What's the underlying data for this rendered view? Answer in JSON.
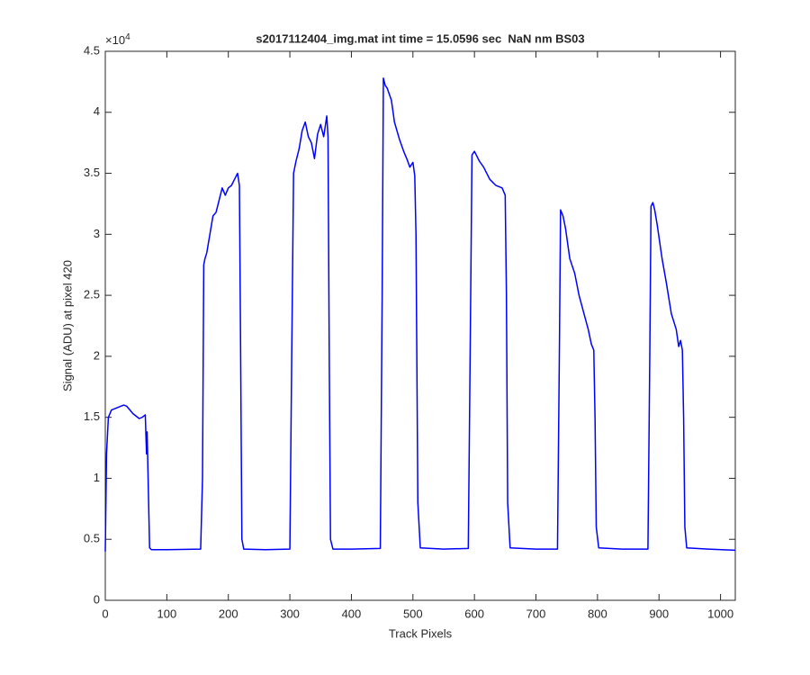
{
  "chart_data": {
    "type": "line",
    "title": "s2017112404_img.mat int time = 15.0596 sec  NaN nm BS03",
    "xlabel": "Track Pixels",
    "ylabel": "Signal (ADU) at pixel 420",
    "y_multiplier": {
      "base": "×10",
      "power": "4"
    },
    "color": "#0000ff",
    "x": [
      0,
      2,
      5,
      10,
      20,
      30,
      35,
      45,
      55,
      60,
      65,
      67,
      68,
      70,
      72,
      75,
      100,
      155,
      158,
      160,
      162,
      165,
      170,
      175,
      180,
      185,
      190,
      195,
      200,
      205,
      210,
      215,
      218,
      220,
      222,
      225,
      260,
      300,
      303,
      306,
      310,
      315,
      320,
      325,
      330,
      335,
      340,
      345,
      350,
      355,
      360,
      362,
      364,
      366,
      370,
      400,
      447,
      450,
      452,
      455,
      458,
      465,
      470,
      478,
      485,
      490,
      495,
      500,
      503,
      505,
      508,
      512,
      550,
      590,
      593,
      596,
      600,
      608,
      615,
      625,
      635,
      645,
      650,
      652,
      654,
      658,
      700,
      735,
      738,
      740,
      744,
      748,
      755,
      763,
      770,
      778,
      785,
      790,
      794,
      796,
      798,
      802,
      840,
      882,
      885,
      887,
      890,
      893,
      897,
      905,
      912,
      920,
      928,
      932,
      935,
      938,
      940,
      942,
      945,
      980,
      1024
    ],
    "values": [
      4000,
      12000,
      15000,
      15600,
      15800,
      16000,
      15900,
      15300,
      14900,
      15000,
      15200,
      12000,
      13800,
      9000,
      4300,
      4150,
      4150,
      4200,
      10000,
      27500,
      28000,
      28500,
      30000,
      31500,
      31800,
      32800,
      33800,
      33200,
      33800,
      34000,
      34500,
      35000,
      34000,
      20000,
      5000,
      4200,
      4150,
      4200,
      20000,
      35000,
      36000,
      37000,
      38500,
      39200,
      38000,
      37500,
      36200,
      38200,
      39000,
      38000,
      39700,
      38000,
      20000,
      5000,
      4200,
      4200,
      4250,
      25000,
      42800,
      42200,
      42000,
      41000,
      39200,
      37800,
      36800,
      36200,
      35500,
      35900,
      34800,
      30000,
      8000,
      4300,
      4200,
      4250,
      20000,
      36500,
      36800,
      36000,
      35500,
      34500,
      34000,
      33800,
      33200,
      25000,
      8000,
      4300,
      4200,
      4200,
      20000,
      32000,
      31500,
      30500,
      28000,
      26800,
      25000,
      23500,
      22200,
      21000,
      20500,
      15000,
      6000,
      4300,
      4200,
      4200,
      20000,
      32300,
      32600,
      32000,
      30800,
      28000,
      26000,
      23500,
      22200,
      20800,
      21300,
      20500,
      15000,
      6000,
      4300,
      4200,
      4100
    ],
    "xlim": [
      0,
      1024
    ],
    "xticks": [
      0,
      100,
      200,
      300,
      400,
      500,
      600,
      700,
      800,
      900,
      1000
    ],
    "ylim": [
      0,
      45000
    ],
    "yticks": [
      {
        "value": 0,
        "label": "0"
      },
      {
        "value": 5000,
        "label": "0.5"
      },
      {
        "value": 10000,
        "label": "1"
      },
      {
        "value": 15000,
        "label": "1.5"
      },
      {
        "value": 20000,
        "label": "2"
      },
      {
        "value": 25000,
        "label": "2.5"
      },
      {
        "value": 30000,
        "label": "3"
      },
      {
        "value": 35000,
        "label": "3.5"
      },
      {
        "value": 40000,
        "label": "4"
      },
      {
        "value": 45000,
        "label": "4.5"
      }
    ],
    "grid": false
  }
}
